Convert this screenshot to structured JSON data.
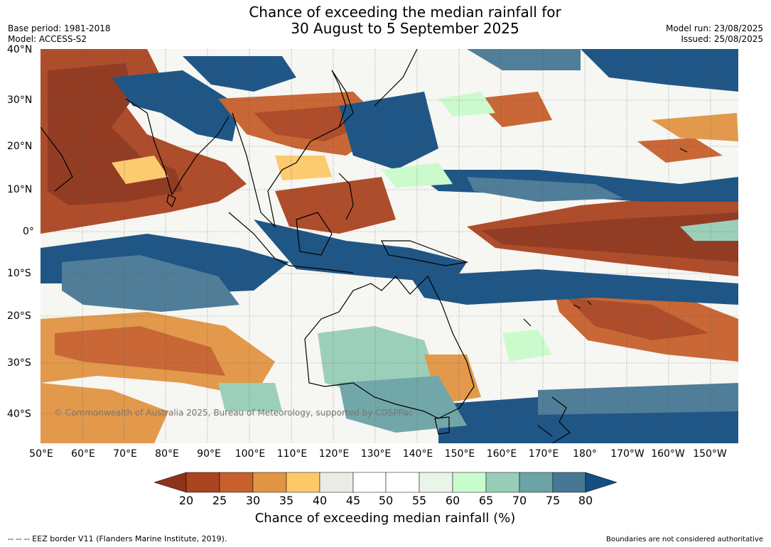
{
  "header": {
    "title_line1": "Chance of exceeding the median rainfall for",
    "title_line2": "30 August to 5 September 2025",
    "base_period": "Base period: 1981-2018",
    "model": "Model: ACCESS-S2",
    "model_run": "Model run: 23/08/2025",
    "issued": "Issued: 25/08/2025"
  },
  "map": {
    "lat_labels": [
      "40°N",
      "30°N",
      "20°N",
      "10°N",
      "0°",
      "10°S",
      "20°S",
      "30°S",
      "40°S"
    ],
    "lon_labels": [
      "50°E",
      "60°E",
      "70°E",
      "80°E",
      "90°E",
      "100°E",
      "110°E",
      "120°E",
      "130°E",
      "140°E",
      "150°E",
      "160°E",
      "170°E",
      "180°",
      "170°W",
      "160°W",
      "150°W"
    ],
    "copyright": "© Commonwealth of Australia 2025, Bureau of Meteorology, supported by COSPPac"
  },
  "colorbar": {
    "colors": [
      "#8e3319",
      "#ab4421",
      "#c7602c",
      "#e19544",
      "#fdc869",
      "#ecebe5",
      "#ffffff",
      "#ffffff",
      "#e9f5e8",
      "#c9fccc",
      "#98cdb8",
      "#6ba3a6",
      "#487794",
      "#154e80"
    ],
    "ticks": [
      "20",
      "25",
      "30",
      "35",
      "40",
      "45",
      "50",
      "55",
      "60",
      "65",
      "70",
      "75",
      "80"
    ],
    "label": "Chance of exceeding median rainfall (%)"
  },
  "footer": {
    "eez": "--  --  -- EEZ border V11 (Flanders Marine Institute, 2019).",
    "boundaries": "Boundaries are not considered authoritative"
  }
}
